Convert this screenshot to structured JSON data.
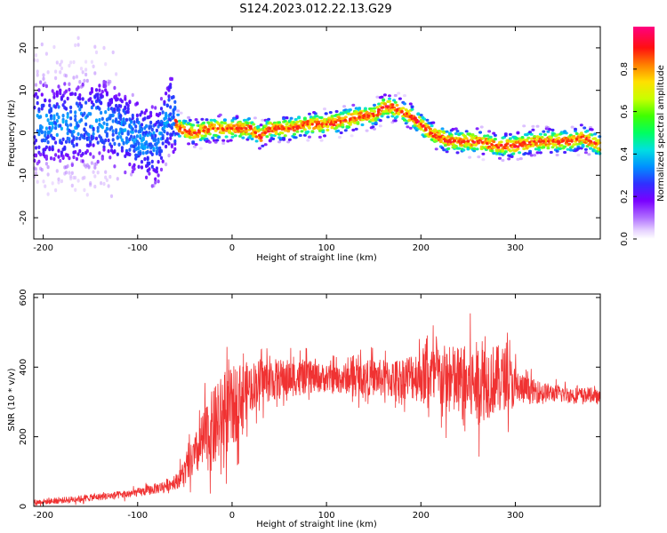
{
  "figure": {
    "title": "S124.2023.012.22.13.G29"
  },
  "chart_data": [
    {
      "type": "heatmap",
      "xlabel": "Height of straight line (km)",
      "ylabel": "Frequency (Hz)",
      "xlim": [
        -210,
        390
      ],
      "ylim": [
        -25,
        25
      ],
      "xticks": [
        "-200",
        "-100",
        "0",
        "100",
        "200",
        "300"
      ],
      "yticks": [
        "20",
        "10",
        "0",
        "-10",
        "-20"
      ],
      "colorbar": {
        "label": "Normalized spectral amplitude",
        "range": [
          0,
          1
        ],
        "ticks": [
          "0.0",
          "0.2",
          "0.4",
          "0.6",
          "0.8"
        ]
      },
      "ridge": {
        "x": [
          -200,
          -180,
          -160,
          -140,
          -120,
          -100,
          -80,
          -65,
          -55,
          -40,
          -20,
          0,
          20,
          30,
          40,
          60,
          80,
          100,
          120,
          140,
          150,
          160,
          170,
          180,
          190,
          200,
          210,
          220,
          230,
          240,
          260,
          280,
          300,
          320,
          340,
          360,
          370,
          390
        ],
        "y": [
          2,
          2,
          2,
          3,
          1,
          -1,
          -3,
          5,
          1,
          0,
          1,
          1,
          1,
          -1,
          1,
          1,
          2,
          2,
          3,
          4,
          4,
          6,
          6,
          5,
          4,
          2,
          0,
          -1,
          -2,
          -2,
          -2,
          -3,
          -3,
          -2,
          -2,
          -2,
          -1,
          -3
        ]
      }
    },
    {
      "type": "line",
      "xlabel": "Height of straight line (km)",
      "ylabel": "SNR (10 * v/v)",
      "xlim": [
        -210,
        390
      ],
      "ylim": [
        0,
        610
      ],
      "xticks": [
        "-200",
        "-100",
        "0",
        "100",
        "200",
        "300"
      ],
      "yticks": [
        "600",
        "400",
        "200",
        "0"
      ],
      "color": "#f03232",
      "x": [
        -210,
        -190,
        -170,
        -150,
        -130,
        -110,
        -90,
        -75,
        -60,
        -50,
        -40,
        -30,
        -20,
        -10,
        0,
        10,
        20,
        30,
        50,
        70,
        90,
        110,
        130,
        150,
        170,
        190,
        210,
        230,
        250,
        270,
        290,
        300,
        320,
        340,
        360,
        380,
        390
      ],
      "y": [
        12,
        15,
        20,
        25,
        30,
        35,
        45,
        55,
        70,
        100,
        140,
        190,
        220,
        260,
        280,
        320,
        345,
        360,
        365,
        370,
        370,
        365,
        370,
        370,
        365,
        375,
        380,
        360,
        350,
        360,
        370,
        340,
        330,
        325,
        320,
        320,
        310
      ],
      "noise": {
        "x": [
          -210,
          -100,
          -60,
          -40,
          -20,
          0,
          20,
          100,
          180,
          210,
          240,
          260,
          290,
          310,
          340,
          390
        ],
        "amp": [
          8,
          12,
          20,
          60,
          120,
          120,
          70,
          40,
          60,
          90,
          110,
          120,
          90,
          40,
          25,
          20
        ]
      }
    }
  ]
}
